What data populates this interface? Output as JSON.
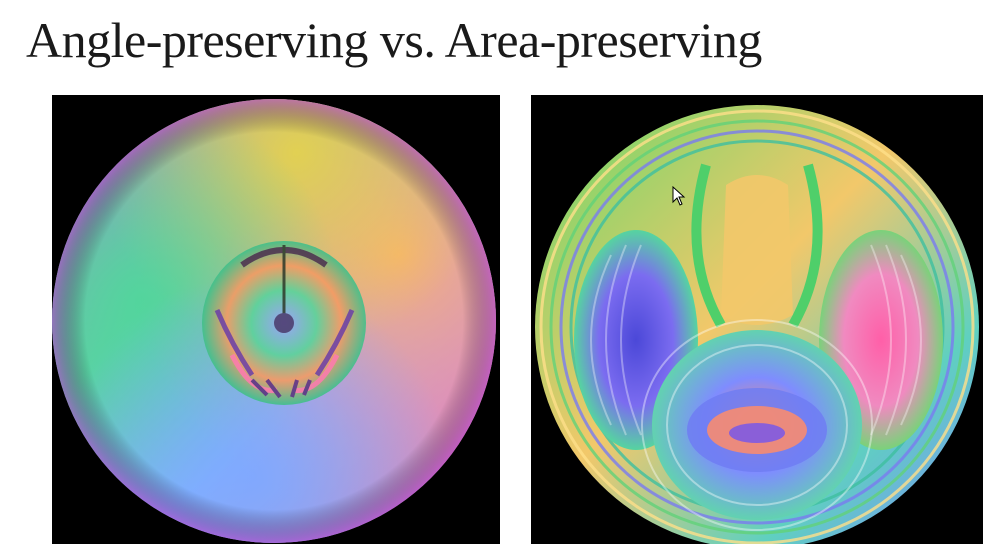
{
  "slide": {
    "title": "Angle-preserving vs. Area-preserving"
  },
  "images": [
    {
      "name": "angle-preserving-surface-image"
    },
    {
      "name": "area-preserving-surface-image"
    }
  ],
  "icons": {
    "cursor": "mouse-pointer-icon"
  }
}
